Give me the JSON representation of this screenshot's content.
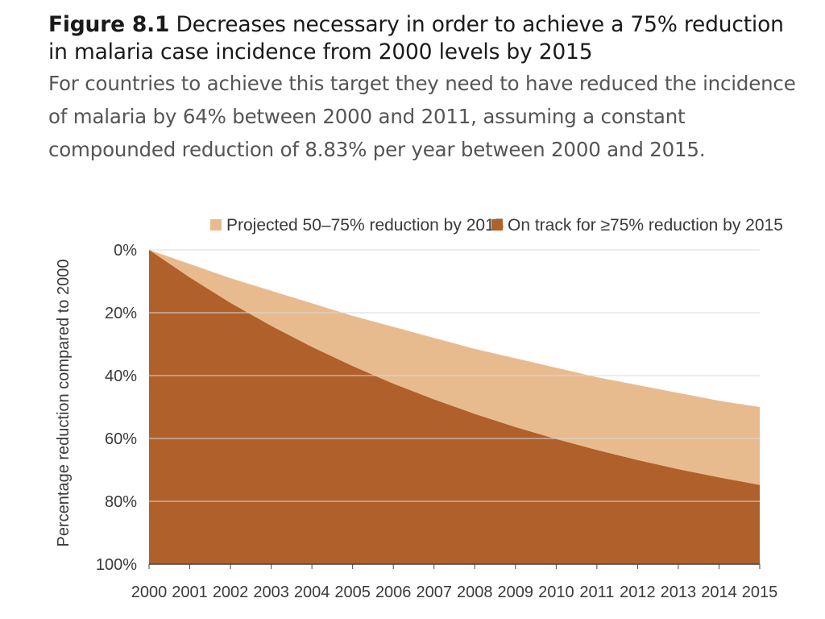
{
  "header": {
    "figure_label": "Figure 8.1",
    "title": "Decreases necessary in order to achieve a 75% reduction in malaria case incidence from 2000 levels by 2015",
    "subtitle": "For countries to achieve this target they need to have reduced the incidence of malaria by 64% between 2000 and 2011, assuming a constant compounded reduction of 8.83% per year between 2000 and 2015."
  },
  "chart_data": {
    "type": "area",
    "title": "Decreases necessary in order to achieve a 75% reduction in malaria case incidence from 2000 levels by 2015",
    "xlabel": "",
    "ylabel": "Percentage reduction compared to 2000",
    "x": [
      2000,
      2001,
      2002,
      2003,
      2004,
      2005,
      2006,
      2007,
      2008,
      2009,
      2010,
      2011,
      2012,
      2013,
      2014,
      2015
    ],
    "x_tick_labels": [
      "2000",
      "2001",
      "2002",
      "2003",
      "2004",
      "2005",
      "2006",
      "2007",
      "2008",
      "2009",
      "2010",
      "2011",
      "2012",
      "2013",
      "2014",
      "2015"
    ],
    "ylim": [
      0,
      100
    ],
    "y_inverted": true,
    "y_ticks": [
      0,
      20,
      40,
      60,
      80,
      100
    ],
    "y_tick_labels": [
      "0%",
      "20%",
      "40%",
      "60%",
      "80%",
      "100%"
    ],
    "grid": "horizontal",
    "legend_position": "top-right",
    "series": [
      {
        "name": "Projected 50–75% reduction by 2015",
        "color": "#e8bb8f",
        "values": [
          0,
          4.5,
          9,
          13,
          17,
          21,
          24.5,
          28,
          31.5,
          34.5,
          37.5,
          40.5,
          43,
          45.5,
          48,
          50
        ]
      },
      {
        "name": "On track for ≥75% reduction by 2015",
        "color": "#b0602a",
        "values": [
          0,
          8.8,
          16.9,
          24.2,
          30.9,
          37.0,
          42.6,
          47.6,
          52.2,
          56.4,
          60.2,
          63.7,
          66.9,
          69.8,
          72.4,
          74.8
        ]
      }
    ]
  }
}
